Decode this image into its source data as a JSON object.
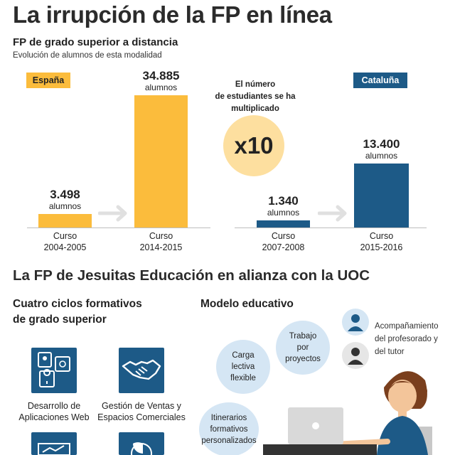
{
  "title": "La irrupción de la FP en línea",
  "subtitle": "FP de grado superior a distancia",
  "caption": "Evolución de alumnos de esta modalidad",
  "colors": {
    "espana": "#fbbc3c",
    "cataluna": "#1d5a87",
    "arrow": "#e0e0e0",
    "highlight": "#fddf9f",
    "bubble": "#d5e6f4"
  },
  "chart_data": [
    {
      "type": "bar",
      "panel": "España",
      "categories": [
        "Curso\n2004-2005",
        "Curso\n2014-2015"
      ],
      "period_lines": [
        [
          "Curso",
          "2004-2005"
        ],
        [
          "Curso",
          "2014-2015"
        ]
      ],
      "values": [
        3498,
        34885
      ],
      "value_labels": [
        "3.498",
        "34.885"
      ],
      "unit_label": "alumnos",
      "color": "#fbbc3c",
      "ylim": [
        0,
        34885
      ],
      "grid": false
    },
    {
      "type": "bar",
      "panel": "Cataluña",
      "categories": [
        "Curso\n2007-2008",
        "Curso\n2015-2016"
      ],
      "period_lines": [
        [
          "Curso",
          "2007-2008"
        ],
        [
          "Curso",
          "2015-2016"
        ]
      ],
      "values": [
        1340,
        13400
      ],
      "value_labels": [
        "1.340",
        "13.400"
      ],
      "unit_label": "alumnos",
      "color": "#1d5a87",
      "ylim": [
        0,
        13400
      ],
      "grid": false
    }
  ],
  "highlight": {
    "note_lines": [
      "El número",
      "de estudiantes se ha",
      "multiplicado"
    ],
    "factor": "x10"
  },
  "section": {
    "title": "La FP de Jesuitas Educación en alianza con la UOC",
    "courses_heading": [
      "Cuatro ciclos formativos",
      "de grado superior"
    ],
    "courses": [
      {
        "icon": "app-development-icon",
        "label_lines": [
          "Desarrollo de",
          "Aplicaciones Web"
        ]
      },
      {
        "icon": "handshake-icon",
        "label_lines": [
          "Gestión de Ventas y",
          "Espacios Comerciales"
        ]
      },
      {
        "icon": "chart-board-icon",
        "label_lines": []
      },
      {
        "icon": "pie-chart-icon",
        "label_lines": []
      }
    ],
    "model_heading": "Modelo educativo",
    "model_items": [
      [
        "Carga",
        "lectiva",
        "flexible"
      ],
      [
        "Trabajo",
        "por",
        "proyectos"
      ],
      [
        "Itinerarios",
        "formativos",
        "personalizados"
      ]
    ],
    "support_lines": [
      "Acompañamiento",
      "del profesorado y",
      "del tutor"
    ]
  }
}
